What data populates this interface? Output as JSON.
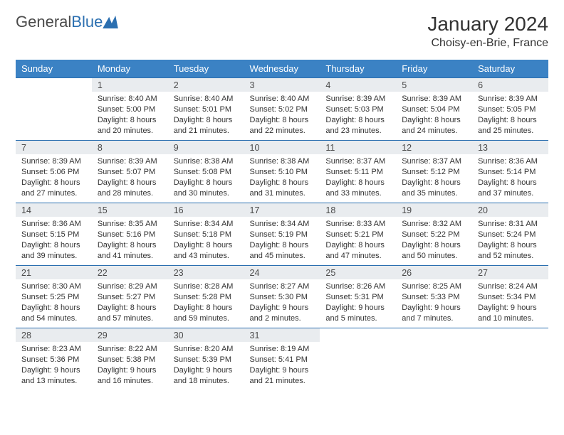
{
  "brand": {
    "name_a": "General",
    "name_b": "Blue"
  },
  "colors": {
    "header_bg": "#3b82c4",
    "daynum_bg": "#e9ecef",
    "rule": "#2b6fb0",
    "text": "#333333",
    "brand_gray": "#4a4a4a",
    "brand_blue": "#2b6fb0"
  },
  "title": "January 2024",
  "location": "Choisy-en-Brie, France",
  "days_of_week": [
    "Sunday",
    "Monday",
    "Tuesday",
    "Wednesday",
    "Thursday",
    "Friday",
    "Saturday"
  ],
  "first_weekday_index": 1,
  "days": [
    {
      "n": 1,
      "sr": "8:40 AM",
      "ss": "5:00 PM",
      "dl": "8 hours and 20 minutes."
    },
    {
      "n": 2,
      "sr": "8:40 AM",
      "ss": "5:01 PM",
      "dl": "8 hours and 21 minutes."
    },
    {
      "n": 3,
      "sr": "8:40 AM",
      "ss": "5:02 PM",
      "dl": "8 hours and 22 minutes."
    },
    {
      "n": 4,
      "sr": "8:39 AM",
      "ss": "5:03 PM",
      "dl": "8 hours and 23 minutes."
    },
    {
      "n": 5,
      "sr": "8:39 AM",
      "ss": "5:04 PM",
      "dl": "8 hours and 24 minutes."
    },
    {
      "n": 6,
      "sr": "8:39 AM",
      "ss": "5:05 PM",
      "dl": "8 hours and 25 minutes."
    },
    {
      "n": 7,
      "sr": "8:39 AM",
      "ss": "5:06 PM",
      "dl": "8 hours and 27 minutes."
    },
    {
      "n": 8,
      "sr": "8:39 AM",
      "ss": "5:07 PM",
      "dl": "8 hours and 28 minutes."
    },
    {
      "n": 9,
      "sr": "8:38 AM",
      "ss": "5:08 PM",
      "dl": "8 hours and 30 minutes."
    },
    {
      "n": 10,
      "sr": "8:38 AM",
      "ss": "5:10 PM",
      "dl": "8 hours and 31 minutes."
    },
    {
      "n": 11,
      "sr": "8:37 AM",
      "ss": "5:11 PM",
      "dl": "8 hours and 33 minutes."
    },
    {
      "n": 12,
      "sr": "8:37 AM",
      "ss": "5:12 PM",
      "dl": "8 hours and 35 minutes."
    },
    {
      "n": 13,
      "sr": "8:36 AM",
      "ss": "5:14 PM",
      "dl": "8 hours and 37 minutes."
    },
    {
      "n": 14,
      "sr": "8:36 AM",
      "ss": "5:15 PM",
      "dl": "8 hours and 39 minutes."
    },
    {
      "n": 15,
      "sr": "8:35 AM",
      "ss": "5:16 PM",
      "dl": "8 hours and 41 minutes."
    },
    {
      "n": 16,
      "sr": "8:34 AM",
      "ss": "5:18 PM",
      "dl": "8 hours and 43 minutes."
    },
    {
      "n": 17,
      "sr": "8:34 AM",
      "ss": "5:19 PM",
      "dl": "8 hours and 45 minutes."
    },
    {
      "n": 18,
      "sr": "8:33 AM",
      "ss": "5:21 PM",
      "dl": "8 hours and 47 minutes."
    },
    {
      "n": 19,
      "sr": "8:32 AM",
      "ss": "5:22 PM",
      "dl": "8 hours and 50 minutes."
    },
    {
      "n": 20,
      "sr": "8:31 AM",
      "ss": "5:24 PM",
      "dl": "8 hours and 52 minutes."
    },
    {
      "n": 21,
      "sr": "8:30 AM",
      "ss": "5:25 PM",
      "dl": "8 hours and 54 minutes."
    },
    {
      "n": 22,
      "sr": "8:29 AM",
      "ss": "5:27 PM",
      "dl": "8 hours and 57 minutes."
    },
    {
      "n": 23,
      "sr": "8:28 AM",
      "ss": "5:28 PM",
      "dl": "8 hours and 59 minutes."
    },
    {
      "n": 24,
      "sr": "8:27 AM",
      "ss": "5:30 PM",
      "dl": "9 hours and 2 minutes."
    },
    {
      "n": 25,
      "sr": "8:26 AM",
      "ss": "5:31 PM",
      "dl": "9 hours and 5 minutes."
    },
    {
      "n": 26,
      "sr": "8:25 AM",
      "ss": "5:33 PM",
      "dl": "9 hours and 7 minutes."
    },
    {
      "n": 27,
      "sr": "8:24 AM",
      "ss": "5:34 PM",
      "dl": "9 hours and 10 minutes."
    },
    {
      "n": 28,
      "sr": "8:23 AM",
      "ss": "5:36 PM",
      "dl": "9 hours and 13 minutes."
    },
    {
      "n": 29,
      "sr": "8:22 AM",
      "ss": "5:38 PM",
      "dl": "9 hours and 16 minutes."
    },
    {
      "n": 30,
      "sr": "8:20 AM",
      "ss": "5:39 PM",
      "dl": "9 hours and 18 minutes."
    },
    {
      "n": 31,
      "sr": "8:19 AM",
      "ss": "5:41 PM",
      "dl": "9 hours and 21 minutes."
    }
  ],
  "labels": {
    "sunrise": "Sunrise:",
    "sunset": "Sunset:",
    "daylight": "Daylight:"
  }
}
